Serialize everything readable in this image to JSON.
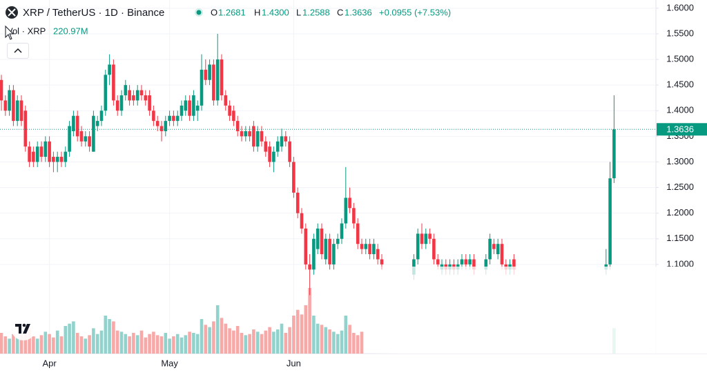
{
  "chart_data": {
    "type": "candlestick",
    "title": "XRP / TetherUS · 1D · Binance",
    "header_letters": [
      "O",
      "H",
      "L",
      "C"
    ],
    "header_values": [
      "1.2681",
      "1.4300",
      "1.2588",
      "1.3636"
    ],
    "change_label": "+0.0955 (+7.53%)",
    "volume_title": "Vol · XRP",
    "volume_value_label": "220.97M",
    "up_color": "#089981",
    "down_color": "#f23645",
    "volume_up_color": "#92d2cc",
    "volume_down_color": "#f7a9a7",
    "ylim": [
      0.926,
      1.616
    ],
    "yticks": [
      {
        "value": 1.6,
        "label": "1.6000"
      },
      {
        "value": 1.55,
        "label": "1.5500"
      },
      {
        "value": 1.5,
        "label": "1.5000"
      },
      {
        "value": 1.45,
        "label": "1.4500"
      },
      {
        "value": 1.4,
        "label": "1.4000"
      },
      {
        "value": 1.35,
        "label": "1.3500"
      },
      {
        "value": 1.3,
        "label": "1.3000"
      },
      {
        "value": 1.25,
        "label": "1.2500"
      },
      {
        "value": 1.2,
        "label": "1.2000"
      },
      {
        "value": 1.15,
        "label": "1.1500"
      },
      {
        "value": 1.1,
        "label": "1.1000"
      }
    ],
    "xticks": [
      {
        "value": 12,
        "label": "Apr"
      },
      {
        "value": 42,
        "label": "May"
      },
      {
        "value": 73,
        "label": "Jun"
      }
    ],
    "grid": true,
    "volume_ylim": [
      0,
      600
    ],
    "ohlc": [
      [
        1.46,
        1.47,
        1.4,
        1.42
      ],
      [
        1.42,
        1.43,
        1.39,
        1.4
      ],
      [
        1.4,
        1.45,
        1.39,
        1.44
      ],
      [
        1.44,
        1.45,
        1.37,
        1.38
      ],
      [
        1.38,
        1.43,
        1.37,
        1.42
      ],
      [
        1.42,
        1.43,
        1.37,
        1.38
      ],
      [
        1.4,
        1.41,
        1.32,
        1.33
      ],
      [
        1.33,
        1.34,
        1.29,
        1.3
      ],
      [
        1.32,
        1.33,
        1.29,
        1.3
      ],
      [
        1.3,
        1.34,
        1.29,
        1.33
      ],
      [
        1.33,
        1.34,
        1.3,
        1.31
      ],
      [
        1.31,
        1.35,
        1.3,
        1.34
      ],
      [
        1.34,
        1.35,
        1.29,
        1.3
      ],
      [
        1.31,
        1.32,
        1.28,
        1.3
      ],
      [
        1.3,
        1.32,
        1.28,
        1.31
      ],
      [
        1.31,
        1.32,
        1.29,
        1.3
      ],
      [
        1.3,
        1.33,
        1.29,
        1.32
      ],
      [
        1.32,
        1.38,
        1.31,
        1.37
      ],
      [
        1.36,
        1.4,
        1.35,
        1.39
      ],
      [
        1.39,
        1.4,
        1.34,
        1.35
      ],
      [
        1.36,
        1.37,
        1.33,
        1.34
      ],
      [
        1.34,
        1.36,
        1.33,
        1.35
      ],
      [
        1.35,
        1.36,
        1.32,
        1.33
      ],
      [
        1.32,
        1.4,
        1.32,
        1.39
      ],
      [
        1.37,
        1.39,
        1.36,
        1.38
      ],
      [
        1.38,
        1.41,
        1.37,
        1.4
      ],
      [
        1.4,
        1.48,
        1.39,
        1.47
      ],
      [
        1.47,
        1.51,
        1.45,
        1.49
      ],
      [
        1.49,
        1.5,
        1.41,
        1.42
      ],
      [
        1.42,
        1.43,
        1.39,
        1.4
      ],
      [
        1.4,
        1.44,
        1.39,
        1.43
      ],
      [
        1.43,
        1.46,
        1.42,
        1.45
      ],
      [
        1.44,
        1.45,
        1.41,
        1.42
      ],
      [
        1.43,
        1.44,
        1.41,
        1.42
      ],
      [
        1.42,
        1.45,
        1.41,
        1.44
      ],
      [
        1.44,
        1.45,
        1.42,
        1.43
      ],
      [
        1.43,
        1.44,
        1.41,
        1.42
      ],
      [
        1.43,
        1.44,
        1.39,
        1.4
      ],
      [
        1.4,
        1.41,
        1.37,
        1.38
      ],
      [
        1.38,
        1.39,
        1.36,
        1.37
      ],
      [
        1.37,
        1.38,
        1.34,
        1.36
      ],
      [
        1.36,
        1.39,
        1.35,
        1.38
      ],
      [
        1.38,
        1.4,
        1.37,
        1.39
      ],
      [
        1.39,
        1.4,
        1.37,
        1.38
      ],
      [
        1.38,
        1.4,
        1.37,
        1.39
      ],
      [
        1.39,
        1.42,
        1.38,
        1.41
      ],
      [
        1.4,
        1.43,
        1.39,
        1.42
      ],
      [
        1.42,
        1.43,
        1.38,
        1.39
      ],
      [
        1.39,
        1.44,
        1.38,
        1.43
      ],
      [
        1.4,
        1.42,
        1.38,
        1.41
      ],
      [
        1.41,
        1.51,
        1.4,
        1.48
      ],
      [
        1.48,
        1.5,
        1.45,
        1.46
      ],
      [
        1.46,
        1.5,
        1.45,
        1.49
      ],
      [
        1.49,
        1.5,
        1.41,
        1.42
      ],
      [
        1.42,
        1.55,
        1.41,
        1.5
      ],
      [
        1.5,
        1.51,
        1.42,
        1.43
      ],
      [
        1.43,
        1.44,
        1.4,
        1.41
      ],
      [
        1.41,
        1.42,
        1.38,
        1.39
      ],
      [
        1.4,
        1.41,
        1.37,
        1.38
      ],
      [
        1.38,
        1.39,
        1.35,
        1.36
      ],
      [
        1.36,
        1.37,
        1.34,
        1.35
      ],
      [
        1.35,
        1.37,
        1.34,
        1.36
      ],
      [
        1.36,
        1.37,
        1.34,
        1.35
      ],
      [
        1.37,
        1.38,
        1.32,
        1.33
      ],
      [
        1.33,
        1.37,
        1.32,
        1.36
      ],
      [
        1.36,
        1.37,
        1.33,
        1.34
      ],
      [
        1.34,
        1.35,
        1.31,
        1.32
      ],
      [
        1.33,
        1.34,
        1.29,
        1.3
      ],
      [
        1.3,
        1.33,
        1.28,
        1.32
      ],
      [
        1.32,
        1.35,
        1.31,
        1.34
      ],
      [
        1.33,
        1.365,
        1.32,
        1.35
      ],
      [
        1.35,
        1.36,
        1.33,
        1.34
      ],
      [
        1.34,
        1.35,
        1.29,
        1.3
      ],
      [
        1.3,
        1.31,
        1.23,
        1.24
      ],
      [
        1.24,
        1.25,
        1.19,
        1.2
      ],
      [
        1.2,
        1.21,
        1.16,
        1.17
      ],
      [
        1.17,
        1.18,
        1.09,
        1.1
      ],
      [
        1.1,
        1.12,
        1.04,
        1.09
      ],
      [
        1.09,
        1.16,
        1.08,
        1.15
      ],
      [
        1.13,
        1.18,
        1.12,
        1.17
      ],
      [
        1.17,
        1.18,
        1.11,
        1.12
      ],
      [
        1.11,
        1.16,
        1.1,
        1.15
      ],
      [
        1.15,
        1.16,
        1.09,
        1.1
      ],
      [
        1.1,
        1.15,
        1.09,
        1.14
      ],
      [
        1.14,
        1.16,
        1.13,
        1.15
      ],
      [
        1.15,
        1.19,
        1.14,
        1.18
      ],
      [
        1.18,
        1.29,
        1.17,
        1.23
      ],
      [
        1.23,
        1.25,
        1.2,
        1.21
      ],
      [
        1.21,
        1.22,
        1.17,
        1.18
      ],
      [
        1.18,
        1.19,
        1.13,
        1.14
      ],
      [
        1.14,
        1.15,
        1.12,
        1.13
      ],
      [
        1.13,
        1.15,
        1.12,
        1.14
      ],
      [
        1.14,
        1.15,
        1.11,
        1.12
      ],
      [
        1.12,
        1.15,
        1.11,
        1.14
      ],
      [
        1.13,
        1.14,
        1.1,
        1.11
      ],
      [
        1.11,
        1.12,
        1.09,
        1.1
      ],
      null,
      null,
      null,
      null,
      null,
      null,
      null,
      [
        1.08,
        1.12,
        1.07,
        1.11
      ],
      [
        1.11,
        1.17,
        1.1,
        1.16
      ],
      [
        1.16,
        1.18,
        1.13,
        1.14
      ],
      [
        1.14,
        1.17,
        1.13,
        1.16
      ],
      [
        1.16,
        1.17,
        1.14,
        1.15
      ],
      [
        1.15,
        1.16,
        1.1,
        1.11
      ],
      [
        1.11,
        1.12,
        1.09,
        1.1
      ],
      [
        1.09,
        1.11,
        1.08,
        1.1
      ],
      [
        1.1,
        1.11,
        1.08,
        1.09
      ],
      [
        1.09,
        1.11,
        1.08,
        1.1
      ],
      [
        1.1,
        1.11,
        1.08,
        1.09
      ],
      [
        1.09,
        1.11,
        1.08,
        1.1
      ],
      [
        1.1,
        1.12,
        1.09,
        1.11
      ],
      [
        1.11,
        1.12,
        1.09,
        1.1
      ],
      [
        1.1,
        1.12,
        1.09,
        1.11
      ],
      [
        1.11,
        1.12,
        1.08,
        1.09
      ],
      null,
      null,
      [
        1.09,
        1.12,
        1.08,
        1.11
      ],
      [
        1.11,
        1.16,
        1.1,
        1.15
      ],
      [
        1.14,
        1.15,
        1.12,
        1.13
      ],
      [
        1.12,
        1.15,
        1.11,
        1.14
      ],
      [
        1.14,
        1.15,
        1.09,
        1.1
      ],
      [
        1.1,
        1.11,
        1.08,
        1.09
      ],
      [
        1.09,
        1.11,
        1.08,
        1.1
      ],
      [
        1.11,
        1.12,
        1.08,
        1.09
      ],
      null,
      null,
      null,
      null,
      null,
      null,
      null,
      null,
      null,
      null,
      null,
      null,
      null,
      null,
      null,
      null,
      null,
      null,
      null,
      null,
      null,
      null,
      [
        1.09,
        1.13,
        1.08,
        1.1
      ],
      [
        1.1,
        1.3,
        1.09,
        1.268
      ],
      [
        1.2681,
        1.43,
        1.2588,
        1.3636
      ]
    ],
    "volume": [
      180,
      150,
      130,
      170,
      140,
      160,
      200,
      220,
      150,
      130,
      160,
      190,
      170,
      140,
      200,
      150,
      240,
      260,
      280,
      180,
      150,
      130,
      160,
      220,
      170,
      200,
      330,
      300,
      280,
      200,
      190,
      170,
      150,
      180,
      160,
      200,
      140,
      170,
      190,
      160,
      150,
      180,
      130,
      150,
      170,
      140,
      160,
      190,
      180,
      170,
      300,
      250,
      230,
      280,
      420,
      310,
      260,
      220,
      200,
      240,
      180,
      160,
      170,
      210,
      190,
      170,
      200,
      230,
      190,
      210,
      260,
      180,
      230,
      330,
      380,
      340,
      420,
      570,
      330,
      260,
      250,
      230,
      210,
      190,
      170,
      200,
      330,
      250,
      180,
      160,
      190,
      null,
      null,
      null,
      null,
      null,
      null,
      null,
      null,
      null,
      null,
      null,
      null,
      null,
      null,
      null,
      null,
      null,
      null,
      null,
      null,
      null,
      null,
      null,
      null,
      null,
      null,
      null,
      null,
      null,
      null,
      null,
      null,
      null,
      null,
      null,
      null,
      null,
      null,
      null,
      null,
      null,
      null,
      null,
      null,
      null,
      null,
      null,
      null,
      null,
      null,
      null,
      null,
      null,
      null,
      null,
      null,
      null,
      null,
      null,
      null,
      null,
      null,
      220.97
    ]
  }
}
